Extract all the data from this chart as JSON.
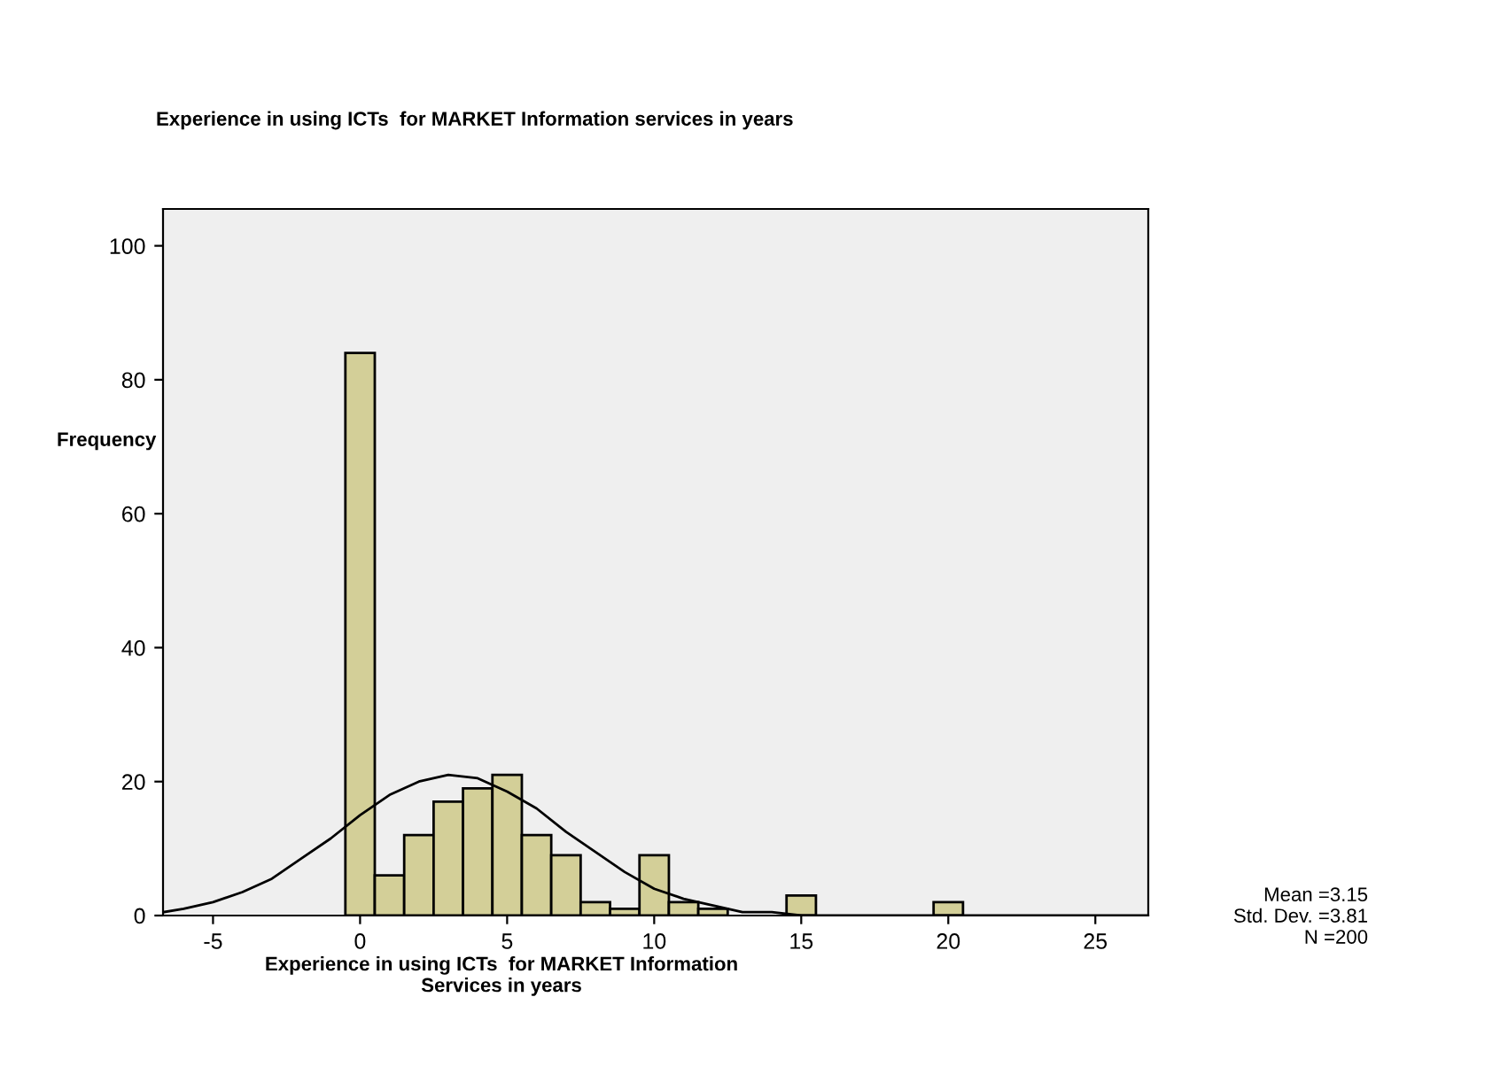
{
  "chart_data": {
    "type": "histogram",
    "title": "Experience in using ICTs  for MARKET Information services in years",
    "xlabel": "Experience in using ICTs  for MARKET Information\nServices in years",
    "ylabel": "Frequency",
    "bins": [
      -0.5,
      0.5,
      1.5,
      2.5,
      3.5,
      4.5,
      5.5,
      6.5,
      7.5,
      8.5,
      9.5,
      10.5,
      11.5,
      12.5,
      13.5,
      14.5,
      15.5,
      16.5,
      17.5,
      18.5,
      19.5,
      20.5
    ],
    "values": [
      84,
      6,
      12,
      17,
      19,
      21,
      12,
      9,
      2,
      1,
      9,
      2,
      1,
      0,
      0,
      3,
      0,
      0,
      0,
      0,
      2
    ],
    "color": "#d3cf98",
    "series": [
      {
        "type": "line",
        "color": "#000000",
        "x": [
          -6.7,
          -6,
          -5,
          -4,
          -3,
          -2,
          -1,
          0,
          1,
          2,
          3,
          4,
          5,
          6,
          7,
          8,
          9,
          10,
          11,
          12,
          13,
          14,
          15,
          16,
          17,
          18,
          20,
          26.8
        ],
        "values": [
          0.5,
          1,
          2,
          3.5,
          5.5,
          8.5,
          11.5,
          15,
          18,
          20,
          21,
          20.5,
          18.5,
          16,
          12.5,
          9.5,
          6.5,
          4,
          2.5,
          1.5,
          0.5,
          0.5,
          0,
          0,
          0,
          0,
          0,
          0
        ]
      }
    ],
    "xlim": [
      -6.7,
      26.8
    ],
    "xticks": [
      -5,
      0,
      5,
      10,
      15,
      20,
      25
    ],
    "ylim": [
      0,
      105.5
    ],
    "yticks": [
      0,
      20,
      40,
      60,
      80,
      100
    ],
    "grid": false,
    "legend": false,
    "annotations": [
      "Mean =3.15\nStd. Dev. =3.81\nN =200"
    ]
  }
}
